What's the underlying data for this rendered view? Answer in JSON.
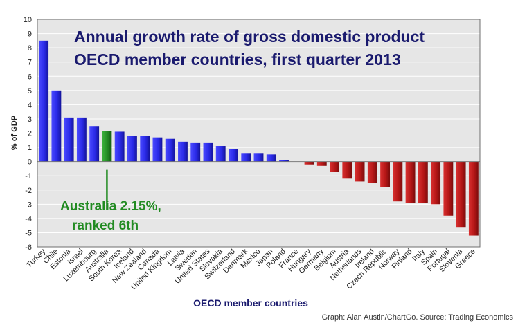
{
  "chart_data": {
    "type": "bar",
    "title_line1": "Annual growth rate of gross domestic product",
    "title_line2": "OECD member countries, first quarter 2013",
    "xlabel": "OECD member countries",
    "ylabel": "% of GDP",
    "ylim": [
      -6,
      10
    ],
    "yticks": [
      -6,
      -5,
      -4,
      -3,
      -2,
      -1,
      0,
      1,
      2,
      3,
      4,
      5,
      6,
      7,
      8,
      9,
      10
    ],
    "grid": true,
    "categories": [
      "Turkey",
      "Chile",
      "Estonia",
      "Israel",
      "Luxembourg",
      "Australia",
      "South Korea",
      "Iceland",
      "New Zealand",
      "Canada",
      "United Kingdom",
      "Latvia",
      "Sweden",
      "United States",
      "Slovakia",
      "Switzerland",
      "Denmark",
      "Mexico",
      "Japan",
      "Poland",
      "France",
      "Hungary",
      "Germany",
      "Belgium",
      "Austria",
      "Netherlands",
      "Ireland",
      "Czech Republic",
      "Norway",
      "Finland",
      "Italy",
      "Spain",
      "Portugal",
      "Slovenia",
      "Greece"
    ],
    "values": [
      8.5,
      5.0,
      3.1,
      3.1,
      2.5,
      2.15,
      2.1,
      1.8,
      1.8,
      1.7,
      1.6,
      1.4,
      1.3,
      1.3,
      1.1,
      0.9,
      0.6,
      0.6,
      0.5,
      0.1,
      0.0,
      -0.2,
      -0.3,
      -0.7,
      -1.2,
      -1.4,
      -1.5,
      -1.8,
      -2.8,
      -2.9,
      -2.9,
      -3.0,
      -3.8,
      -4.6,
      -5.2
    ],
    "highlight_category": "Australia",
    "colors": {
      "positive": "#2323e8",
      "highlight": "#238b23",
      "negative": "#b51616",
      "title": "#1a1a6e",
      "annotation": "#228b22",
      "plot_bg": "#e6e6e6",
      "grid": "#ffffff"
    },
    "annotation_line1": "Australia 2.15%,",
    "annotation_line2": "ranked 6th",
    "source": "Graph: Alan Austin/ChartGo. Source: Trading Economics"
  }
}
